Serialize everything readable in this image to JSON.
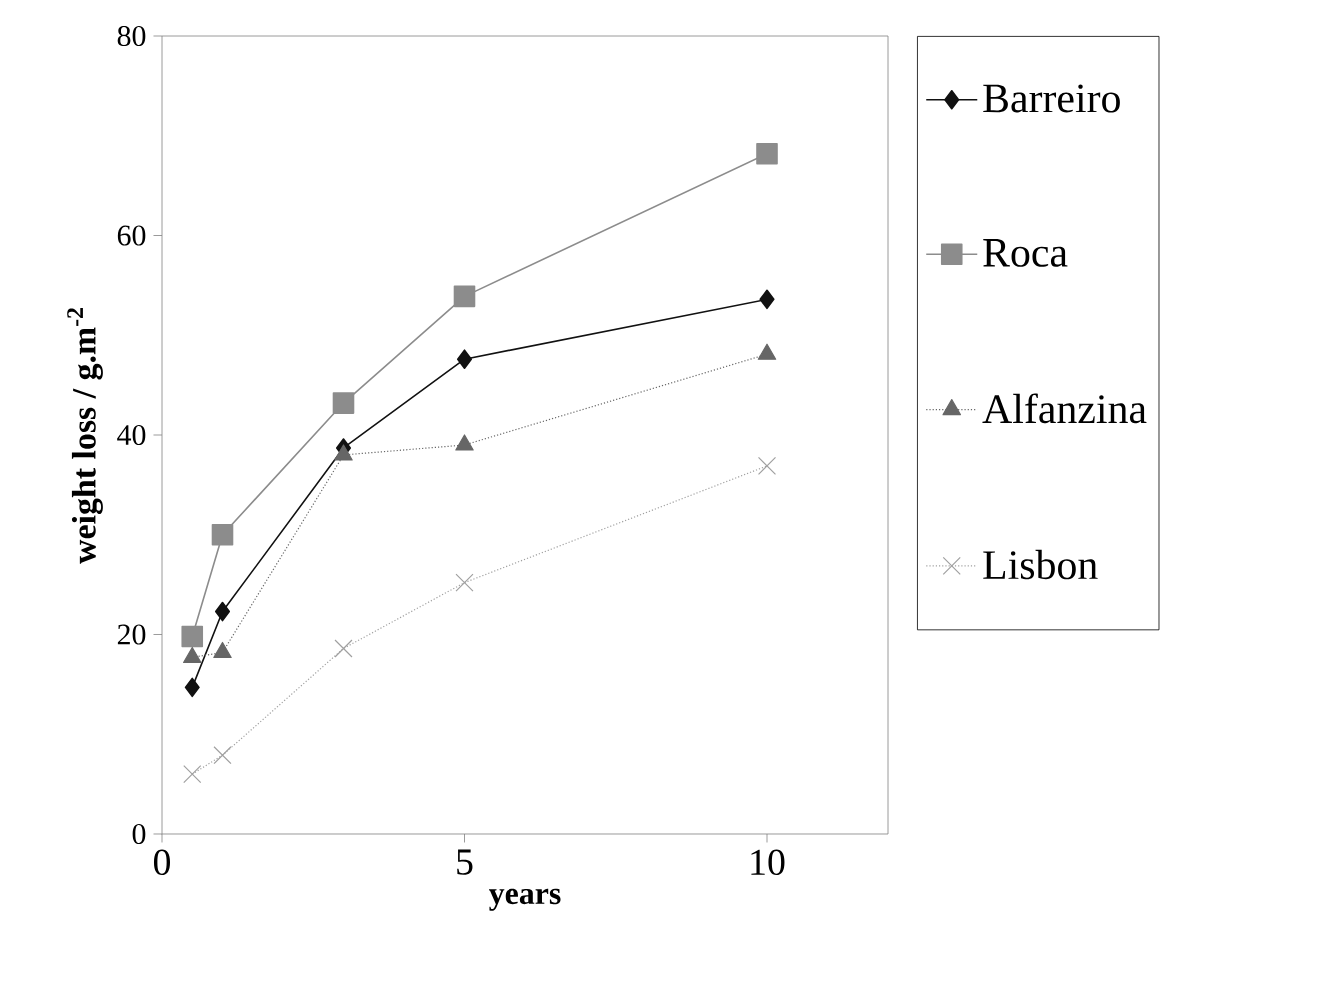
{
  "chart_data": {
    "type": "line",
    "xlabel": "years",
    "ylabel": "weight loss /  g.m$^{-2}$",
    "x": [
      0.5,
      1,
      3,
      5,
      10
    ],
    "xlim": [
      0,
      12
    ],
    "xticks": [
      0,
      5,
      10
    ],
    "ylim": [
      0,
      80
    ],
    "yticks": [
      0,
      20,
      40,
      60,
      80
    ],
    "legend": "right",
    "grid": false,
    "series": [
      {
        "name": "Barreiro",
        "color": "#111111",
        "marker": "diamond",
        "line_style": "solid",
        "values": [
          14.7,
          22.3,
          38.7,
          47.6,
          53.6
        ]
      },
      {
        "name": "Roca",
        "color": "#8c8c8c",
        "marker": "square",
        "line_style": "solid",
        "values": [
          19.8,
          30,
          43.2,
          53.9,
          68.2
        ]
      },
      {
        "name": "Alfanzina",
        "color": "#666666",
        "marker": "triangle",
        "line_style": "dotted",
        "values": [
          17.7,
          18.2,
          38.0,
          39.0,
          48.1
        ]
      },
      {
        "name": "Lisbon",
        "color": "#a0a0a0",
        "marker": "cross",
        "line_style": "dotted",
        "values": [
          6,
          7.9,
          18.6,
          25.2,
          36.9
        ]
      }
    ]
  }
}
